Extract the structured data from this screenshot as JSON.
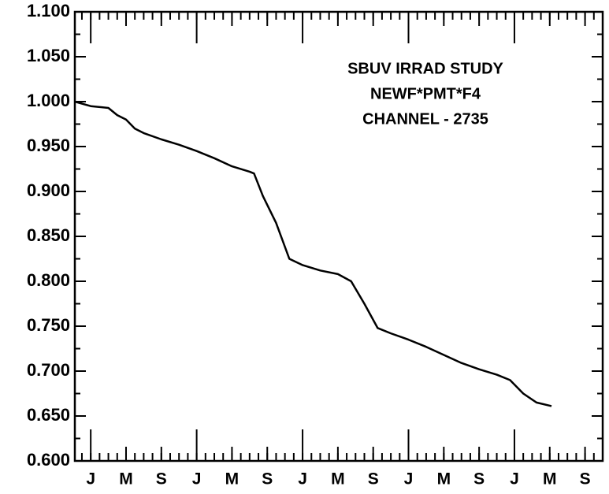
{
  "chart_data": {
    "type": "line",
    "annotation": [
      "SBUV IRRAD STUDY",
      "NEWF*PMT*F4",
      "CHANNEL - 2735"
    ],
    "series": [
      {
        "color": "#000000",
        "x": [
          -1.8,
          0,
          2,
          3,
          4,
          5,
          6,
          8,
          10,
          12,
          14,
          16,
          18,
          18.5,
          19.5,
          21,
          22.5,
          24,
          26,
          28,
          29.5,
          31,
          32.5,
          34,
          36,
          38,
          40,
          42,
          44,
          46,
          47.5,
          49,
          50.5,
          52.2
        ],
        "values": [
          1.0,
          0.995,
          0.993,
          0.985,
          0.98,
          0.97,
          0.965,
          0.958,
          0.952,
          0.945,
          0.937,
          0.928,
          0.922,
          0.92,
          0.895,
          0.865,
          0.825,
          0.818,
          0.812,
          0.808,
          0.8,
          0.775,
          0.748,
          0.742,
          0.735,
          0.727,
          0.718,
          0.709,
          0.702,
          0.696,
          0.69,
          0.675,
          0.665,
          0.661
        ]
      }
    ],
    "xlim": [
      -1.8,
      58
    ],
    "xticks": [
      {
        "value": 0,
        "label": "J"
      },
      {
        "value": 4,
        "label": "M"
      },
      {
        "value": 8,
        "label": "S"
      },
      {
        "value": 12,
        "label": "J"
      },
      {
        "value": 16,
        "label": "M"
      },
      {
        "value": 20,
        "label": "S"
      },
      {
        "value": 24,
        "label": "J"
      },
      {
        "value": 28,
        "label": "M"
      },
      {
        "value": 32,
        "label": "S"
      },
      {
        "value": 36,
        "label": "J"
      },
      {
        "value": 40,
        "label": "M"
      },
      {
        "value": 44,
        "label": "S"
      },
      {
        "value": 48,
        "label": "J"
      },
      {
        "value": 52,
        "label": "M"
      },
      {
        "value": 56,
        "label": "S"
      }
    ],
    "ylim": [
      0.6,
      1.1
    ],
    "yticks": [
      {
        "value": 0.6,
        "label": "0.600"
      },
      {
        "value": 0.65,
        "label": "0.650"
      },
      {
        "value": 0.7,
        "label": "0.700"
      },
      {
        "value": 0.75,
        "label": "0.750"
      },
      {
        "value": 0.8,
        "label": "0.800"
      },
      {
        "value": 0.85,
        "label": "0.850"
      },
      {
        "value": 0.9,
        "label": "0.900"
      },
      {
        "value": 0.95,
        "label": "0.950"
      },
      {
        "value": 1.0,
        "label": "1.000"
      },
      {
        "value": 1.05,
        "label": "1.050"
      },
      {
        "value": 1.1,
        "label": "1.100"
      }
    ],
    "grid": false
  }
}
